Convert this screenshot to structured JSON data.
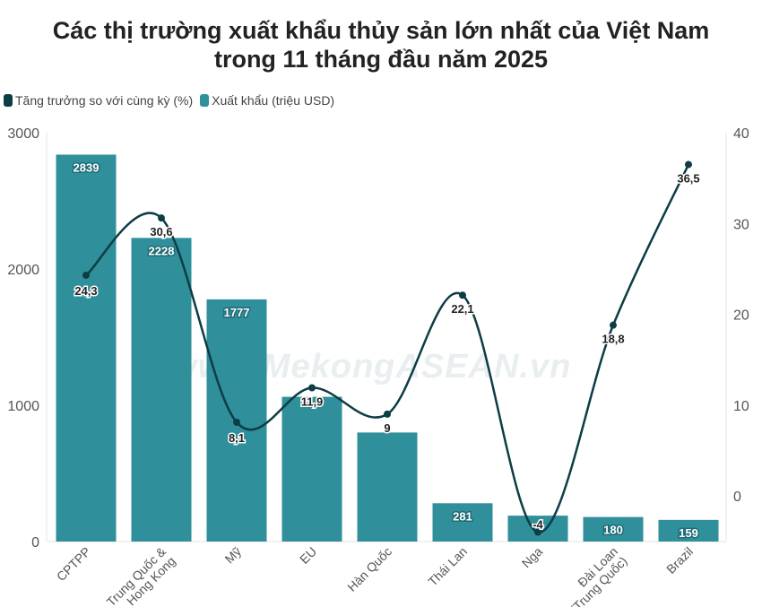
{
  "chart_data": {
    "type": "bar+line",
    "title": [
      "Các thị trường xuất khẩu thủy sản lớn nhất của Việt Nam",
      "trong 11 tháng đầu năm 2025"
    ],
    "watermark": "www.MekongASEAN.vn",
    "categories": [
      "CPTPP",
      "Trung Quốc & Hong Kong",
      "Mỹ",
      "EU",
      "Hàn Quốc",
      "Thái Lan",
      "Nga",
      "Đài Loan (Trung Quốc)",
      "Brazil"
    ],
    "series": [
      {
        "name": "Tăng trưởng so với cùng kỳ (%)",
        "type": "line",
        "axis": "right",
        "color": "#0d3d45",
        "values": [
          24.3,
          30.6,
          8.1,
          11.9,
          9,
          22.1,
          -4,
          18.8,
          36.5
        ],
        "labels": [
          "24,3",
          "30,6",
          "8,1",
          "11,9",
          "9",
          "22,1",
          "-4",
          "18,8",
          "36,5"
        ]
      },
      {
        "name": "Xuất khẩu (triệu USD)",
        "type": "bar",
        "axis": "left",
        "color": "#2f8f9b",
        "values": [
          2839,
          2228,
          1777,
          1062,
          800,
          281,
          190,
          180,
          159
        ],
        "labels": [
          "2839",
          "2228",
          "1777",
          "",
          "",
          "281",
          "",
          "180",
          "159"
        ]
      }
    ],
    "y_left": {
      "range": [
        0,
        3000
      ],
      "ticks": [
        "0",
        "1000",
        "2000",
        "3000"
      ]
    },
    "y_right": {
      "range": [
        -4,
        40
      ],
      "ticks": [
        "0",
        "10",
        "20",
        "30",
        "40"
      ]
    },
    "legend": "top-left"
  }
}
